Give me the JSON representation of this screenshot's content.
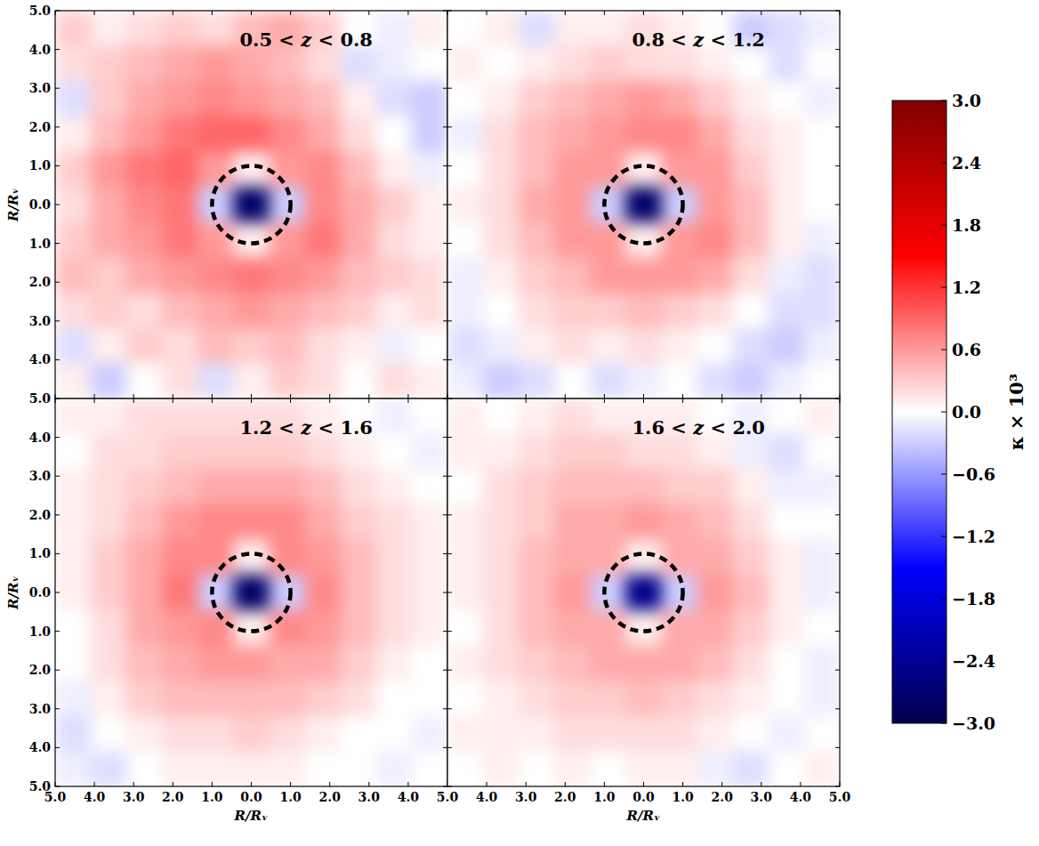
{
  "chart_data": {
    "type": "heatmap",
    "color_range": [
      -3,
      3
    ],
    "color_ticks": [
      {
        "value": 3,
        "label": "3.0"
      },
      {
        "value": 2.4,
        "label": "2.4"
      },
      {
        "value": 1.8,
        "label": "1.8"
      },
      {
        "value": 1.2,
        "label": "1.2"
      },
      {
        "value": 0.6,
        "label": "0.6"
      },
      {
        "value": 0,
        "label": "0.0"
      },
      {
        "value": -0.6,
        "label": "−0.6"
      },
      {
        "value": -1.2,
        "label": "−1.2"
      },
      {
        "value": -1.8,
        "label": "−1.8"
      },
      {
        "value": -2.4,
        "label": "−2.4"
      },
      {
        "value": -3,
        "label": "−3.0"
      }
    ],
    "color_label": "κ × 10³",
    "void_radius": 1,
    "panels": [
      {
        "title": "0.5 < z < 0.8",
        "xlim": [
          -5,
          5
        ],
        "ylim": [
          -5,
          5
        ],
        "tick_labels": "y",
        "ylabel": "R/Rᵥ",
        "xticks": [
          -5,
          -4,
          -3,
          -2,
          -1,
          0,
          1,
          2,
          3,
          4,
          5
        ],
        "yticks": [
          {
            "value": 5,
            "label": "5.0"
          },
          {
            "value": 4,
            "label": "4.0"
          },
          {
            "value": 3,
            "label": "3.0"
          },
          {
            "value": 2,
            "label": "2.0"
          },
          {
            "value": 1,
            "label": "1.0"
          },
          {
            "value": 0,
            "label": "0.0"
          },
          {
            "value": -1,
            "label": "1.0"
          },
          {
            "value": -2,
            "label": "2.0"
          },
          {
            "value": -3,
            "label": "3.0"
          },
          {
            "value": -4,
            "label": "4.0"
          }
        ],
        "cells": [
          [
            0.3,
            0.1,
            0.2,
            0.3,
            0.2,
            0.4,
            0.5,
            0.3,
            0.0,
            -0.1,
            0.1
          ],
          [
            0.2,
            0.3,
            0.4,
            0.5,
            0.6,
            0.5,
            0.4,
            0.2,
            -0.2,
            -0.1,
            0.0
          ],
          [
            -0.2,
            0.3,
            0.5,
            0.6,
            0.7,
            0.6,
            0.5,
            0.4,
            0.1,
            -0.2,
            -0.3
          ],
          [
            0.1,
            0.4,
            0.6,
            0.8,
            0.9,
            0.9,
            0.7,
            0.5,
            0.2,
            0.0,
            -0.3
          ],
          [
            0.3,
            0.6,
            0.8,
            0.9,
            0.6,
            0.1,
            0.6,
            0.7,
            0.4,
            0.1,
            -0.1
          ],
          [
            0.2,
            0.5,
            0.7,
            0.8,
            -0.3,
            -2.8,
            -0.3,
            0.7,
            0.5,
            0.3,
            0.1
          ],
          [
            0.3,
            0.5,
            0.6,
            0.8,
            0.6,
            0.1,
            0.6,
            0.8,
            0.5,
            0.2,
            0.1
          ],
          [
            0.4,
            0.3,
            0.5,
            0.6,
            0.7,
            0.8,
            0.7,
            0.6,
            0.4,
            0.3,
            0.2
          ],
          [
            0.2,
            0.3,
            0.2,
            0.4,
            0.5,
            0.6,
            0.5,
            0.4,
            0.3,
            0.1,
            0.2
          ],
          [
            -0.2,
            0.1,
            0.3,
            0.2,
            0.4,
            0.3,
            0.4,
            0.2,
            0.1,
            -0.1,
            0.0
          ],
          [
            0.1,
            -0.3,
            0.0,
            0.2,
            -0.2,
            0.1,
            0.3,
            0.2,
            0.0,
            0.2,
            0.1
          ]
        ]
      },
      {
        "title": "0.8 < z < 1.2",
        "xlim": [
          -5,
          5
        ],
        "ylim": [
          -5,
          5
        ],
        "tick_labels": false,
        "xticks": [
          -5,
          -4,
          -3,
          -2,
          -1,
          0,
          1,
          2,
          3,
          4,
          5
        ],
        "yticks": [
          -5,
          -4,
          -3,
          -2,
          -1,
          0,
          1,
          2,
          3,
          4,
          5
        ],
        "cells": [
          [
            0.0,
            0.1,
            -0.2,
            0.1,
            0.1,
            0.2,
            0.1,
            0.0,
            -0.3,
            -0.2,
            -0.1
          ],
          [
            0.1,
            0.0,
            0.1,
            0.2,
            0.3,
            0.2,
            0.2,
            0.1,
            0.0,
            -0.2,
            0.0
          ],
          [
            0.0,
            0.1,
            0.3,
            0.4,
            0.5,
            0.6,
            0.5,
            0.3,
            0.1,
            0.0,
            -0.1
          ],
          [
            -0.1,
            0.2,
            0.4,
            0.5,
            0.6,
            0.7,
            0.7,
            0.5,
            0.2,
            0.1,
            0.0
          ],
          [
            0.0,
            0.2,
            0.4,
            0.6,
            0.6,
            0.1,
            0.6,
            0.6,
            0.3,
            0.1,
            0.0
          ],
          [
            0.1,
            0.2,
            0.5,
            0.6,
            -0.3,
            -2.8,
            -0.3,
            0.6,
            0.4,
            0.1,
            0.0
          ],
          [
            0.0,
            0.2,
            0.4,
            0.6,
            0.6,
            0.1,
            0.6,
            0.7,
            0.4,
            0.1,
            -0.1
          ],
          [
            -0.1,
            0.1,
            0.3,
            0.4,
            0.6,
            0.6,
            0.6,
            0.5,
            0.2,
            -0.1,
            -0.2
          ],
          [
            -0.1,
            0.0,
            0.2,
            0.3,
            0.3,
            0.4,
            0.3,
            0.2,
            0.0,
            -0.2,
            -0.2
          ],
          [
            -0.2,
            -0.1,
            0.1,
            0.2,
            0.1,
            0.2,
            0.1,
            0.0,
            -0.2,
            -0.3,
            -0.1
          ],
          [
            -0.1,
            -0.3,
            -0.2,
            0.0,
            -0.2,
            -0.1,
            0.0,
            -0.2,
            -0.3,
            -0.1,
            0.0
          ]
        ]
      },
      {
        "title": "1.2 < z < 1.6",
        "xlim": [
          -5,
          5
        ],
        "ylim": [
          -5,
          5
        ],
        "tick_labels": true,
        "xlabel": "R/Rᵥ",
        "ylabel": "R/Rᵥ",
        "xticks": [
          {
            "value": -5,
            "label": "5.0"
          },
          {
            "value": -4,
            "label": "4.0"
          },
          {
            "value": -3,
            "label": "3.0"
          },
          {
            "value": -2,
            "label": "2.0"
          },
          {
            "value": -1,
            "label": "1.0"
          },
          {
            "value": 0,
            "label": "0.0"
          },
          {
            "value": 1,
            "label": "1.0"
          },
          {
            "value": 2,
            "label": "2.0"
          },
          {
            "value": 3,
            "label": "3.0"
          },
          {
            "value": 4,
            "label": "4.0"
          },
          {
            "value": 5,
            "label": "5.0"
          }
        ],
        "yticks": [
          {
            "value": 5,
            "label": "5.0"
          },
          {
            "value": 4,
            "label": "4.0"
          },
          {
            "value": 3,
            "label": "3.0"
          },
          {
            "value": 2,
            "label": "2.0"
          },
          {
            "value": 1,
            "label": "1.0"
          },
          {
            "value": 0,
            "label": "0.0"
          },
          {
            "value": -1,
            "label": "1.0"
          },
          {
            "value": -2,
            "label": "2.0"
          },
          {
            "value": -3,
            "label": "3.0"
          },
          {
            "value": -4,
            "label": "4.0"
          },
          {
            "value": -5,
            "label": "5.0"
          }
        ],
        "cells": [
          [
            0.1,
            0.1,
            0.2,
            0.2,
            0.2,
            0.2,
            0.2,
            0.1,
            0.0,
            -0.1,
            0.0
          ],
          [
            0.0,
            0.2,
            0.2,
            0.3,
            0.3,
            0.3,
            0.3,
            0.2,
            0.1,
            0.0,
            -0.1
          ],
          [
            0.1,
            0.2,
            0.3,
            0.4,
            0.5,
            0.5,
            0.5,
            0.4,
            0.2,
            0.1,
            0.0
          ],
          [
            0.1,
            0.2,
            0.4,
            0.6,
            0.7,
            0.7,
            0.7,
            0.5,
            0.3,
            0.2,
            0.1
          ],
          [
            0.1,
            0.3,
            0.5,
            0.7,
            0.7,
            0.1,
            0.7,
            0.6,
            0.4,
            0.2,
            0.1
          ],
          [
            0.1,
            0.3,
            0.5,
            0.8,
            -0.3,
            -2.8,
            -0.3,
            0.7,
            0.4,
            0.2,
            0.1
          ],
          [
            0.0,
            0.2,
            0.5,
            0.6,
            0.7,
            0.1,
            0.7,
            0.6,
            0.4,
            0.2,
            0.1
          ],
          [
            0.0,
            0.2,
            0.4,
            0.5,
            0.6,
            0.6,
            0.5,
            0.5,
            0.3,
            0.1,
            0.0
          ],
          [
            -0.1,
            0.1,
            0.3,
            0.4,
            0.4,
            0.4,
            0.4,
            0.3,
            0.2,
            0.0,
            0.0
          ],
          [
            -0.2,
            0.0,
            0.1,
            0.2,
            0.2,
            0.3,
            0.2,
            0.1,
            0.0,
            0.0,
            -0.1
          ],
          [
            -0.1,
            -0.2,
            0.0,
            0.1,
            0.1,
            0.1,
            0.1,
            0.0,
            0.0,
            -0.1,
            0.0
          ]
        ]
      },
      {
        "title": "1.6 < z < 2.0",
        "xlim": [
          -5,
          5
        ],
        "ylim": [
          -5,
          5
        ],
        "tick_labels": "x",
        "xlabel": "R/Rᵥ",
        "xticks": [
          {
            "value": -4,
            "label": "4.0"
          },
          {
            "value": -3,
            "label": "3.0"
          },
          {
            "value": -2,
            "label": "2.0"
          },
          {
            "value": -1,
            "label": "1.0"
          },
          {
            "value": 0,
            "label": "0.0"
          },
          {
            "value": 1,
            "label": "1.0"
          },
          {
            "value": 2,
            "label": "2.0"
          },
          {
            "value": 3,
            "label": "3.0"
          },
          {
            "value": 4,
            "label": "4.0"
          },
          {
            "value": 5,
            "label": "5.0"
          }
        ],
        "yticks": [
          -5,
          -4,
          -3,
          -2,
          -1,
          0,
          1,
          2,
          3,
          4,
          5
        ],
        "cells": [
          [
            0.1,
            0.0,
            0.1,
            0.2,
            0.1,
            0.1,
            0.1,
            0.0,
            -0.1,
            0.0,
            0.1
          ],
          [
            0.1,
            0.1,
            0.2,
            0.3,
            0.3,
            0.2,
            0.2,
            0.1,
            -0.1,
            -0.2,
            0.0
          ],
          [
            0.0,
            0.2,
            0.3,
            0.4,
            0.4,
            0.4,
            0.3,
            0.3,
            0.1,
            -0.1,
            -0.1
          ],
          [
            0.1,
            0.2,
            0.3,
            0.5,
            0.5,
            0.6,
            0.5,
            0.4,
            0.2,
            0.0,
            0.0
          ],
          [
            0.1,
            0.2,
            0.4,
            0.5,
            0.5,
            0.1,
            0.5,
            0.5,
            0.3,
            0.1,
            -0.1
          ],
          [
            0.1,
            0.2,
            0.4,
            0.6,
            -0.3,
            -2.5,
            -0.3,
            0.6,
            0.4,
            0.1,
            -0.1
          ],
          [
            0.0,
            0.2,
            0.4,
            0.5,
            0.5,
            0.1,
            0.5,
            0.5,
            0.3,
            0.1,
            0.0
          ],
          [
            0.1,
            0.2,
            0.3,
            0.4,
            0.5,
            0.5,
            0.5,
            0.4,
            0.2,
            0.0,
            -0.1
          ],
          [
            0.0,
            0.1,
            0.2,
            0.3,
            0.3,
            0.4,
            0.3,
            0.2,
            0.1,
            0.0,
            -0.1
          ],
          [
            0.1,
            0.1,
            0.1,
            0.2,
            0.2,
            0.2,
            0.2,
            0.1,
            0.0,
            -0.1,
            0.0
          ],
          [
            0.0,
            0.1,
            0.0,
            0.1,
            0.0,
            0.1,
            0.1,
            -0.1,
            -0.2,
            0.0,
            0.1
          ]
        ]
      }
    ]
  }
}
